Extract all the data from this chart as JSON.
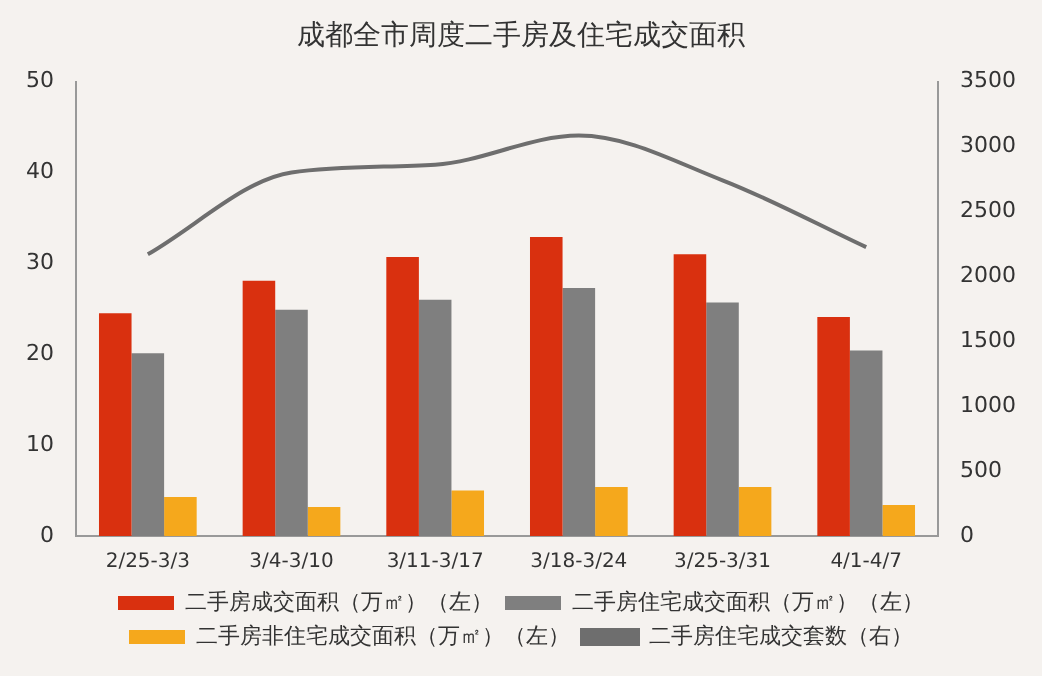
{
  "chart_data": {
    "type": "bar",
    "title": "成都全市周度二手房及住宅成交面积",
    "categories": [
      "2/25-3/3",
      "3/4-3/10",
      "3/11-3/17",
      "3/18-3/24",
      "3/25-3/31",
      "4/1-4/7"
    ],
    "series": [
      {
        "name": "二手房成交面积（万㎡）（左）",
        "color": "#d9300f",
        "values": [
          24.5,
          28.1,
          30.7,
          32.9,
          31.0,
          24.1
        ]
      },
      {
        "name": "二手房住宅成交面积（万㎡）（左）",
        "color": "#7f7f7f",
        "values": [
          20.1,
          24.9,
          26.0,
          27.3,
          25.7,
          20.4
        ]
      },
      {
        "name": "二手房非住宅成交面积（万㎡）（左）",
        "color": "#f5a81c",
        "values": [
          4.3,
          3.2,
          5.0,
          5.4,
          5.4,
          3.4
        ]
      },
      {
        "name": "二手房住宅成交套数（右）",
        "type": "line",
        "axis": "y2",
        "color": "#6e6e6e",
        "values": [
          2170,
          2800,
          2860,
          3085,
          2740,
          2225
        ]
      }
    ],
    "ylim": [
      0,
      50
    ],
    "yticks": [
      0,
      10,
      20,
      30,
      40,
      50
    ],
    "y2lim": [
      0,
      3500
    ],
    "y2ticks": [
      0,
      500,
      1000,
      1500,
      2000,
      2500,
      3000,
      3500
    ],
    "grid": false,
    "legend": "bottom",
    "marker": "none"
  }
}
